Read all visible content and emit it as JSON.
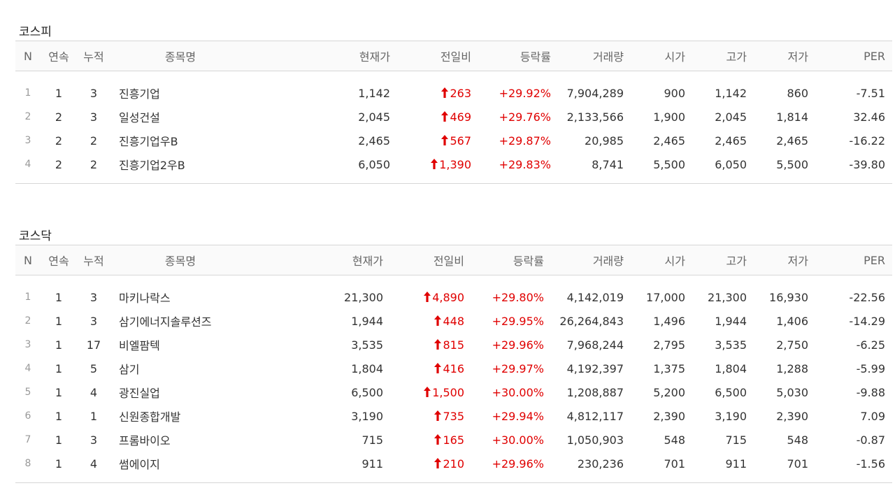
{
  "columns": [
    "N",
    "연속",
    "누적",
    "종목명",
    "현재가",
    "전일비",
    "등락률",
    "거래량",
    "시가",
    "고가",
    "저가",
    "PER"
  ],
  "colors": {
    "up": "#e00000",
    "arrow": "up-arrow-icon"
  },
  "kospi": {
    "title": "코스피",
    "rows": [
      {
        "n": "1",
        "streak": "1",
        "total": "3",
        "name": "진흥기업",
        "price": "1,142",
        "change": "263",
        "rate": "+29.92%",
        "volume": "7,904,289",
        "open": "900",
        "high": "1,142",
        "low": "860",
        "per": "-7.51"
      },
      {
        "n": "2",
        "streak": "2",
        "total": "3",
        "name": "일성건설",
        "price": "2,045",
        "change": "469",
        "rate": "+29.76%",
        "volume": "2,133,566",
        "open": "1,900",
        "high": "2,045",
        "low": "1,814",
        "per": "32.46"
      },
      {
        "n": "3",
        "streak": "2",
        "total": "2",
        "name": "진흥기업우B",
        "price": "2,465",
        "change": "567",
        "rate": "+29.87%",
        "volume": "20,985",
        "open": "2,465",
        "high": "2,465",
        "low": "2,465",
        "per": "-16.22"
      },
      {
        "n": "4",
        "streak": "2",
        "total": "2",
        "name": "진흥기업2우B",
        "price": "6,050",
        "change": "1,390",
        "rate": "+29.83%",
        "volume": "8,741",
        "open": "5,500",
        "high": "6,050",
        "low": "5,500",
        "per": "-39.80"
      }
    ]
  },
  "kosdaq": {
    "title": "코스닥",
    "rows": [
      {
        "n": "1",
        "streak": "1",
        "total": "3",
        "name": "마키나락스",
        "price": "21,300",
        "change": "4,890",
        "rate": "+29.80%",
        "volume": "4,142,019",
        "open": "17,000",
        "high": "21,300",
        "low": "16,930",
        "per": "-22.56"
      },
      {
        "n": "2",
        "streak": "1",
        "total": "3",
        "name": "삼기에너지솔루션즈",
        "price": "1,944",
        "change": "448",
        "rate": "+29.95%",
        "volume": "26,264,843",
        "open": "1,496",
        "high": "1,944",
        "low": "1,406",
        "per": "-14.29"
      },
      {
        "n": "3",
        "streak": "1",
        "total": "17",
        "name": "비엘팜텍",
        "price": "3,535",
        "change": "815",
        "rate": "+29.96%",
        "volume": "7,968,244",
        "open": "2,795",
        "high": "3,535",
        "low": "2,750",
        "per": "-6.25"
      },
      {
        "n": "4",
        "streak": "1",
        "total": "5",
        "name": "삼기",
        "price": "1,804",
        "change": "416",
        "rate": "+29.97%",
        "volume": "4,192,397",
        "open": "1,375",
        "high": "1,804",
        "low": "1,288",
        "per": "-5.99"
      },
      {
        "n": "5",
        "streak": "1",
        "total": "4",
        "name": "광진실업",
        "price": "6,500",
        "change": "1,500",
        "rate": "+30.00%",
        "volume": "1,208,887",
        "open": "5,200",
        "high": "6,500",
        "low": "5,030",
        "per": "-9.88"
      },
      {
        "n": "6",
        "streak": "1",
        "total": "1",
        "name": "신원종합개발",
        "price": "3,190",
        "change": "735",
        "rate": "+29.94%",
        "volume": "4,812,117",
        "open": "2,390",
        "high": "3,190",
        "low": "2,390",
        "per": "7.09"
      },
      {
        "n": "7",
        "streak": "1",
        "total": "3",
        "name": "프롬바이오",
        "price": "715",
        "change": "165",
        "rate": "+30.00%",
        "volume": "1,050,903",
        "open": "548",
        "high": "715",
        "low": "548",
        "per": "-0.87"
      },
      {
        "n": "8",
        "streak": "1",
        "total": "4",
        "name": "썸에이지",
        "price": "911",
        "change": "210",
        "rate": "+29.96%",
        "volume": "230,236",
        "open": "701",
        "high": "911",
        "low": "701",
        "per": "-1.56"
      }
    ]
  }
}
